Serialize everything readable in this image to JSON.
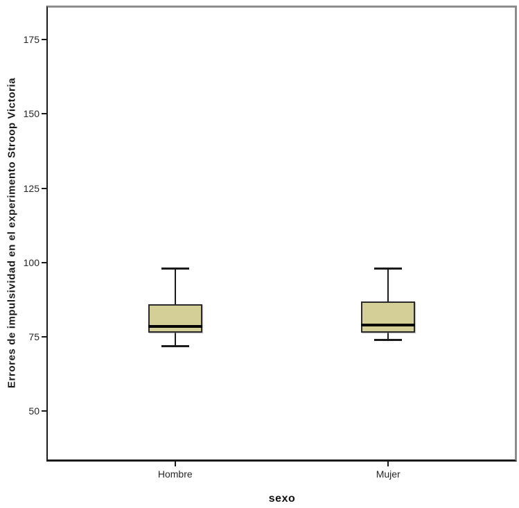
{
  "chart_data": {
    "type": "boxplot",
    "title": "",
    "xlabel": "sexo",
    "ylabel": "Errores de impulsividad en el experimento Stroop Victoria",
    "categories": [
      "Hombre",
      "Mujer"
    ],
    "yticks": [
      50,
      75,
      100,
      125,
      150,
      175
    ],
    "ylim": [
      33,
      186.5
    ],
    "grid": false,
    "legend_position": "none",
    "series": [
      {
        "name": "Hombre",
        "whisker_low": 72,
        "q1": 76.5,
        "median": 78.5,
        "q3": 86,
        "whisker_high": 98
      },
      {
        "name": "Mujer",
        "whisker_low": 74,
        "q1": 76.5,
        "median": 79,
        "q3": 87,
        "whisker_high": 98
      }
    ],
    "colors": {
      "box_fill": "#d3cf97",
      "box_border": "#2a2a2a",
      "median": "#000000",
      "whisker": "#1a1a1a",
      "axis": "#1a1a1a",
      "frame_gray": "#8c8c8c",
      "text": "#262626"
    }
  }
}
